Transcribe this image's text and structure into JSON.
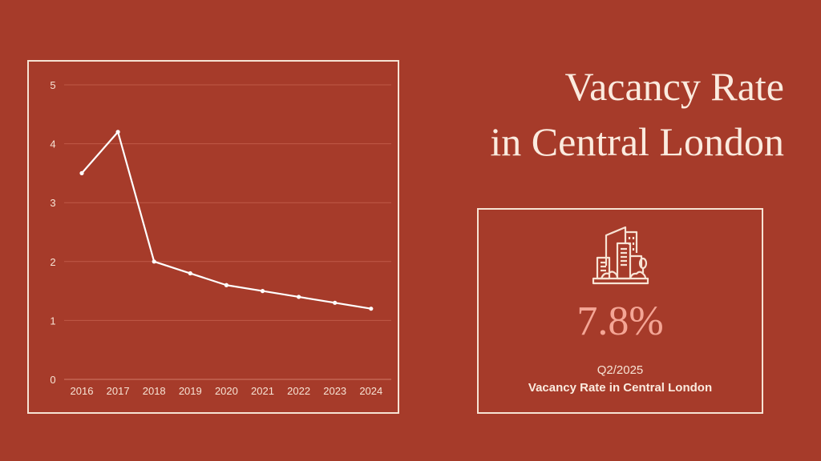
{
  "title": {
    "line1": "Vacancy Rate",
    "line2": "in Central London"
  },
  "card": {
    "icon": "city-buildings-icon",
    "value": "7.8%",
    "period": "Q2/2025",
    "label": "Vacancy Rate in Central London"
  },
  "colors": {
    "background": "#A63B2A",
    "frame": "#F7E3D4",
    "line": "#FFFFFF",
    "accent_value": "#F4A595",
    "gridline": "#BF5A47"
  },
  "chart_data": {
    "type": "line",
    "title": "",
    "xlabel": "",
    "ylabel": "",
    "categories": [
      "2016",
      "2017",
      "2018",
      "2019",
      "2020",
      "2021",
      "2022",
      "2023",
      "2024"
    ],
    "values": [
      3.5,
      4.2,
      2.0,
      1.8,
      1.6,
      1.5,
      1.4,
      1.3,
      1.2
    ],
    "yticks": [
      "0",
      "1",
      "2",
      "3",
      "4",
      "5"
    ],
    "ylim": [
      0,
      5
    ],
    "grid": true,
    "legend": "none",
    "markers": true
  }
}
